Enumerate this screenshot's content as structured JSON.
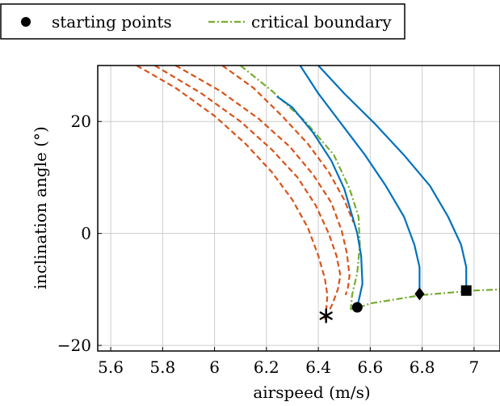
{
  "chart_data": {
    "type": "line",
    "xlabel": "airspeed (m/s)",
    "ylabel": "inclination angle (°)",
    "xlim": [
      5.55,
      7.1
    ],
    "ylim": [
      -21,
      30
    ],
    "x_ticks": [
      5.6,
      5.8,
      6,
      6.2,
      6.4,
      6.6,
      6.8,
      7
    ],
    "x_tick_labels": [
      "5.6",
      "5.8",
      "6",
      "6.2",
      "6.4",
      "6.6",
      "6.8",
      "7"
    ],
    "y_ticks": [
      -20,
      0,
      20
    ],
    "y_tick_labels": [
      "−20",
      "0",
      "20"
    ],
    "grid": true,
    "legend": {
      "placement": "top-left, above plot",
      "entries": [
        "starting points",
        "critical boundary"
      ]
    },
    "colors": {
      "red": "#d95319",
      "blue": "#0072bd",
      "green": "#77ac30",
      "marker": "#000000"
    },
    "series": [
      {
        "style": "dashed",
        "color": "red",
        "x": [
          5.7,
          5.85,
          6.0,
          6.12,
          6.22,
          6.3,
          6.36,
          6.4,
          6.425,
          6.435,
          6.43,
          6.425
        ],
        "y": [
          30,
          26,
          21,
          16,
          11,
          6,
          1,
          -4,
          -8,
          -11,
          -14,
          -16
        ]
      },
      {
        "style": "dashed",
        "color": "red",
        "x": [
          5.77,
          5.95,
          6.1,
          6.22,
          6.32,
          6.39,
          6.44,
          6.47,
          6.485,
          6.475,
          6.455,
          6.44
        ],
        "y": [
          30,
          25,
          20,
          15,
          10,
          5,
          0,
          -4,
          -7.5,
          -10,
          -12.5,
          -14
        ]
      },
      {
        "style": "dashed",
        "color": "red",
        "x": [
          5.85,
          6.02,
          6.17,
          6.29,
          6.38,
          6.45,
          6.49,
          6.51,
          6.52,
          6.515,
          6.505
        ],
        "y": [
          30,
          25.5,
          20.5,
          15.5,
          10.5,
          5.5,
          0.5,
          -3.5,
          -7.5,
          -9.5,
          -11
        ]
      },
      {
        "style": "dashed",
        "color": "red",
        "x": [
          6.03,
          6.15,
          6.26,
          6.36,
          6.44,
          6.5,
          6.535
        ],
        "y": [
          30,
          26,
          21,
          16,
          11,
          6,
          2
        ]
      },
      {
        "name": "critical boundary",
        "style": "dashdot",
        "color": "green",
        "x": [
          6.1,
          6.22,
          6.35,
          6.46,
          6.52,
          6.555,
          6.56,
          6.55,
          6.53,
          6.525,
          6.54,
          6.6,
          6.8,
          7.0,
          7.1
        ],
        "y": [
          30,
          25.5,
          20,
          14,
          8,
          3,
          -2,
          -7,
          -11,
          -13.5,
          -13.5,
          -12.5,
          -11,
          -10.2,
          -10
        ]
      },
      {
        "style": "solid",
        "color": "blue",
        "x": [
          6.55,
          6.57,
          6.565,
          6.55,
          6.525,
          6.5,
          6.45,
          6.38,
          6.3,
          6.24
        ],
        "y": [
          -13.2,
          -9,
          -4,
          0,
          4,
          8,
          13,
          18,
          22.5,
          24.5
        ]
      },
      {
        "style": "solid",
        "color": "blue",
        "x": [
          6.79,
          6.79,
          6.77,
          6.73,
          6.66,
          6.58,
          6.49,
          6.4,
          6.33
        ],
        "y": [
          -10.8,
          -6,
          -2,
          3,
          8.5,
          14,
          19.5,
          25,
          30
        ]
      },
      {
        "style": "solid",
        "color": "blue",
        "x": [
          6.97,
          6.97,
          6.95,
          6.9,
          6.83,
          6.73,
          6.62,
          6.5,
          6.4
        ],
        "y": [
          -10.2,
          -6,
          -2,
          3,
          8.5,
          14,
          19.5,
          25,
          30
        ]
      }
    ],
    "markers": [
      {
        "shape": "star",
        "x": 6.43,
        "y": -14.7
      },
      {
        "shape": "circle",
        "x": 6.55,
        "y": -13.2
      },
      {
        "shape": "diamond",
        "x": 6.79,
        "y": -10.8
      },
      {
        "shape": "square",
        "x": 6.97,
        "y": -10.2
      }
    ]
  }
}
